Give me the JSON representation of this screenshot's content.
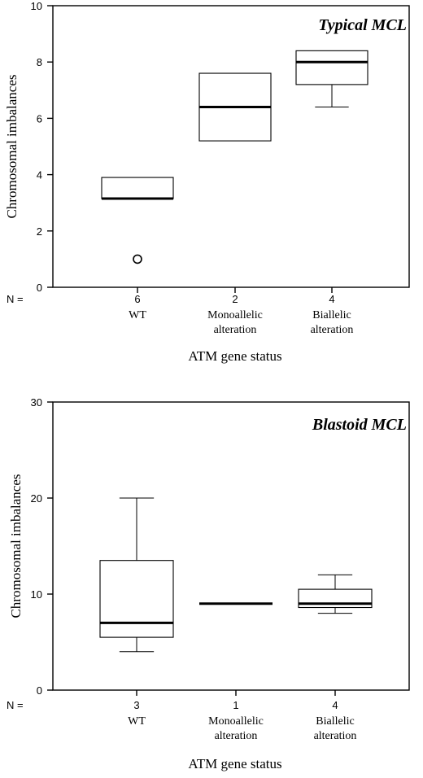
{
  "chart_data": [
    {
      "type": "box",
      "title": "Typical MCL",
      "ylabel": "Chromosomal imbalances",
      "xlabel": "ATM gene status",
      "ylim": [
        0,
        10
      ],
      "yticks": [
        0,
        2,
        4,
        6,
        8,
        10
      ],
      "n_prefix": "N =",
      "grid": false,
      "groups": [
        {
          "label_lines": [
            "WT"
          ],
          "n": "6",
          "min": 3.15,
          "q1": 3.15,
          "median": 3.15,
          "q3": 3.9,
          "max": 3.9,
          "outliers": [
            1
          ]
        },
        {
          "label_lines": [
            "Monoallelic",
            "alteration"
          ],
          "n": "2",
          "min": 5.2,
          "q1": 5.2,
          "median": 6.4,
          "q3": 7.6,
          "max": 7.6,
          "outliers": []
        },
        {
          "label_lines": [
            "Biallelic",
            "alteration"
          ],
          "n": "4",
          "min": 6.4,
          "q1": 7.2,
          "median": 8.0,
          "q3": 8.4,
          "max": 8.4,
          "outliers": []
        }
      ]
    },
    {
      "type": "box",
      "title": "Blastoid MCL",
      "ylabel": "Chromosomal imbalances",
      "xlabel": "ATM gene status",
      "ylim": [
        0,
        30
      ],
      "yticks": [
        0,
        10,
        20,
        30
      ],
      "n_prefix": "N =",
      "grid": false,
      "groups": [
        {
          "label_lines": [
            "WT"
          ],
          "n": "3",
          "min": 4,
          "q1": 5.5,
          "median": 7,
          "q3": 13.5,
          "max": 20,
          "outliers": []
        },
        {
          "label_lines": [
            "Monoallelic",
            "alteration"
          ],
          "n": "1",
          "min": 9,
          "q1": 9,
          "median": 9,
          "q3": 9,
          "max": 9,
          "outliers": []
        },
        {
          "label_lines": [
            "Biallelic",
            "alteration"
          ],
          "n": "4",
          "min": 8,
          "q1": 8.6,
          "median": 9,
          "q3": 10.5,
          "max": 12,
          "outliers": []
        }
      ]
    }
  ]
}
